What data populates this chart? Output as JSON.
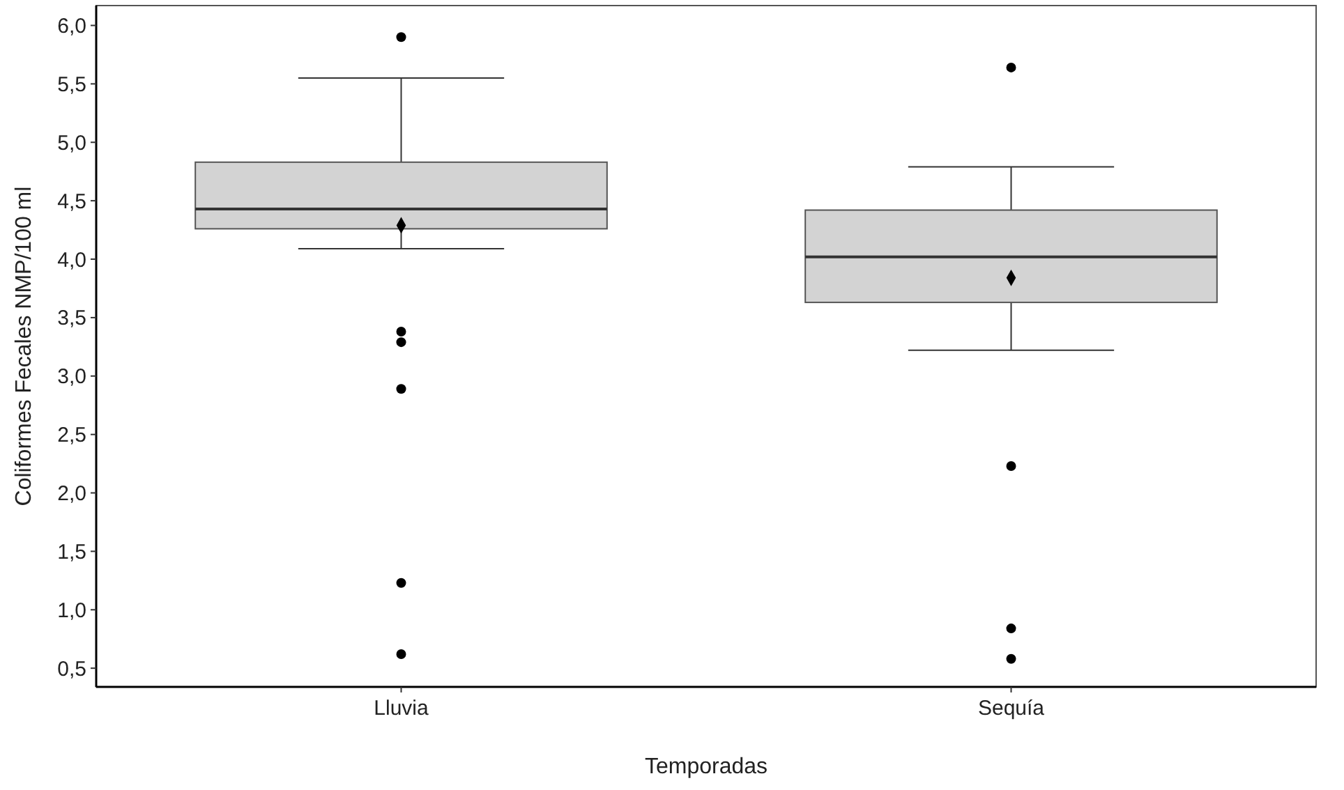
{
  "chart_data": {
    "type": "box",
    "xlabel": "Temporadas",
    "ylabel": "Coliformes Fecales NMP/100 ml",
    "categories": [
      "Lluvia",
      "Sequía"
    ],
    "boxes": [
      {
        "low": 4.09,
        "q1": 4.26,
        "median": 4.43,
        "q3": 4.83,
        "high": 5.55,
        "mean": 4.29,
        "outliers": [
          5.9,
          3.38,
          3.29,
          2.89,
          1.23,
          0.62
        ]
      },
      {
        "low": 3.22,
        "q1": 3.63,
        "median": 4.02,
        "q3": 4.42,
        "high": 4.79,
        "mean": 3.84,
        "outliers": [
          5.64,
          2.23,
          0.84,
          0.58
        ]
      }
    ],
    "color": "#d3d3d3",
    "ylim": [
      0.34,
      6.17
    ],
    "yticks": [
      {
        "value": 0.5,
        "label": "0,5"
      },
      {
        "value": 1,
        "label": "1,0"
      },
      {
        "value": 1.5,
        "label": "1,5"
      },
      {
        "value": 2,
        "label": "2,0"
      },
      {
        "value": 2.5,
        "label": "2,5"
      },
      {
        "value": 3,
        "label": "3,0"
      },
      {
        "value": 3.5,
        "label": "3,5"
      },
      {
        "value": 4,
        "label": "4,0"
      },
      {
        "value": 4.5,
        "label": "4,5"
      },
      {
        "value": 5,
        "label": "5,0"
      },
      {
        "value": 5.5,
        "label": "5,5"
      },
      {
        "value": 6,
        "label": "6,0"
      }
    ],
    "grid": false
  }
}
